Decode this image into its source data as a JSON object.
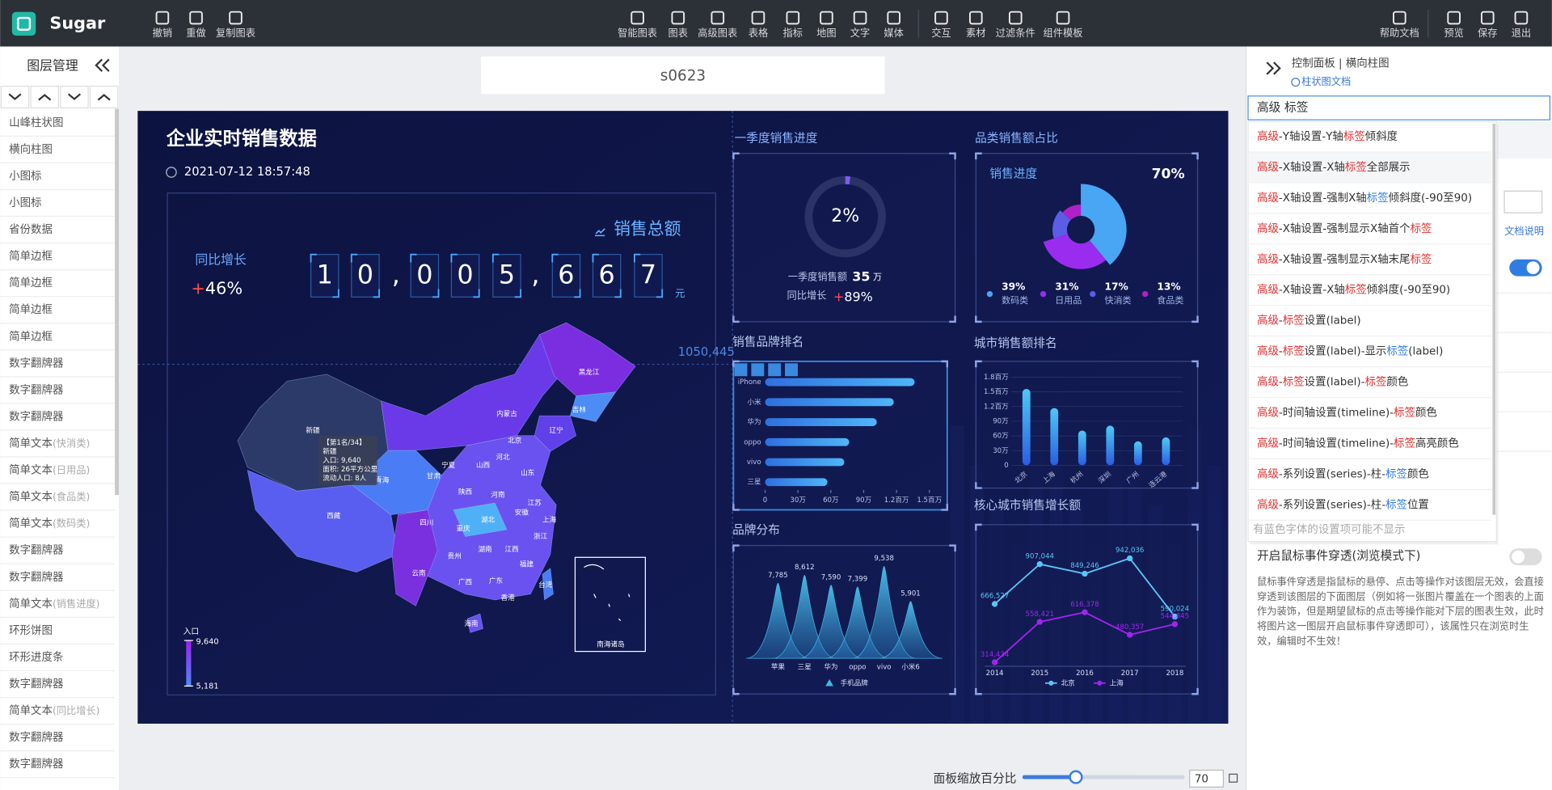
{
  "toolbar": {
    "brand": "Sugar",
    "left_actions": [
      "撤销",
      "重做",
      "复制图表"
    ],
    "center_actions": [
      "智能图表",
      "图表",
      "高级图表",
      "表格",
      "指标",
      "地图",
      "文字",
      "媒体",
      "交互",
      "素材",
      "过滤条件",
      "组件模板"
    ],
    "right_actions": [
      "帮助文档",
      "预览",
      "保存",
      "退出"
    ]
  },
  "layers": {
    "title": "图层管理",
    "items": [
      {
        "name": "山峰柱状图"
      },
      {
        "name": "横向柱图"
      },
      {
        "name": "小图标"
      },
      {
        "name": "小图标"
      },
      {
        "name": "省份数据"
      },
      {
        "name": "简单边框"
      },
      {
        "name": "简单边框"
      },
      {
        "name": "简单边框"
      },
      {
        "name": "简单边框"
      },
      {
        "name": "数字翻牌器"
      },
      {
        "name": "数字翻牌器"
      },
      {
        "name": "数字翻牌器"
      },
      {
        "name": "简单文本",
        "note": "(快消类)"
      },
      {
        "name": "简单文本",
        "note": "(日用品)"
      },
      {
        "name": "简单文本",
        "note": "(食品类)"
      },
      {
        "name": "简单文本",
        "note": "(数码类)"
      },
      {
        "name": "数字翻牌器"
      },
      {
        "name": "数字翻牌器"
      },
      {
        "name": "简单文本",
        "note": "(销售进度)"
      },
      {
        "name": "环形饼图"
      },
      {
        "name": "环形进度条"
      },
      {
        "name": "数字翻牌器"
      },
      {
        "name": "简单文本",
        "note": "(同比增长)"
      },
      {
        "name": "数字翻牌器"
      },
      {
        "name": "数字翻牌器"
      }
    ]
  },
  "canvas": {
    "title": "s0623",
    "zoom_label": "面板缩放百分比",
    "zoom_value": 70
  },
  "dashboard": {
    "title": "企业实时销售数据",
    "datetime": "2021-07-12 18:57:48",
    "total": {
      "label": "销售总额",
      "digits": [
        "1",
        "0",
        ",",
        "0",
        "0",
        "5",
        ",",
        "6",
        "6",
        "7"
      ],
      "unit": "元"
    },
    "yoy": {
      "label": "同比增长",
      "sign": "+",
      "value": "46%"
    },
    "guide_label": "1050,445",
    "map": {
      "tooltip": [
        "【第1名/34】",
        "新疆",
        "入口: 9,640",
        "面积: 26平方公里",
        "流动人口: 8人"
      ],
      "provinces": [
        "新疆",
        "西藏",
        "青海",
        "甘肃",
        "内蒙古",
        "黑龙江",
        "吉林",
        "辽宁",
        "宁夏",
        "北京",
        "河北",
        "山西",
        "陕西",
        "河南",
        "山东",
        "江苏",
        "安徽",
        "湖北",
        "上海",
        "浙江",
        "四川",
        "重庆",
        "贵州",
        "湖南",
        "江西",
        "福建",
        "云南",
        "广西",
        "广东",
        "香港",
        "台湾",
        "海南"
      ],
      "legend": {
        "title": "入口",
        "max": {
          "value": 9640,
          "label": "9,640"
        },
        "min": {
          "value": 5181,
          "label": "5,181"
        }
      },
      "inset_label": "南海诸岛"
    },
    "q1_progress": {
      "title": "一季度销售进度",
      "value": 2,
      "value_label": "2%",
      "sales_label": "一季度销售额",
      "sales": "35",
      "sales_unit": "万",
      "yoy_label": "同比增长",
      "yoy_sign": "+",
      "yoy": "89%"
    },
    "category_share": {
      "title": "品类销售额占比",
      "progress_label": "销售进度",
      "progress": "70%",
      "categories": [
        "数码类",
        "日用品",
        "快消类",
        "食品类"
      ],
      "values": [
        39,
        31,
        17,
        13
      ],
      "value_labels": [
        "39%",
        "31%",
        "17%",
        "13%"
      ],
      "colors": [
        "#49a6f4",
        "#9a2cf0",
        "#5a5ee6",
        "#b020c8"
      ]
    },
    "brand_ranking": {
      "title": "销售品牌排名",
      "categories": [
        "iPhone",
        "小米",
        "华为",
        "oppo",
        "vivo",
        "三星"
      ],
      "values": [
        1365000,
        1175000,
        1020000,
        768000,
        723000,
        569000
      ],
      "xlim": [
        0,
        1500000
      ],
      "xticks": [
        0,
        {
          "value": 300000,
          "label": "30万"
        },
        {
          "value": 600000,
          "label": "60万"
        },
        {
          "value": 900000,
          "label": "90万"
        },
        {
          "value": 1200000,
          "label": "1.2百万"
        },
        {
          "value": 1500000,
          "label": "1.5百万"
        }
      ],
      "color": "#3f8ff0"
    },
    "city_ranking": {
      "title": "城市销售额排名",
      "categories": [
        "北京",
        "上海",
        "杭州",
        "深圳",
        "广州",
        "连云港"
      ],
      "values": [
        1560000,
        1170000,
        710000,
        810000,
        490000,
        570000
      ],
      "ylim": [
        0,
        1800000
      ],
      "yticks": [
        0,
        {
          "value": 300000,
          "label": "30万"
        },
        {
          "value": 600000,
          "label": "60万"
        },
        {
          "value": 900000,
          "label": "90万"
        },
        {
          "value": 1200000,
          "label": "1.2百万"
        },
        {
          "value": 1500000,
          "label": "1.5百万"
        },
        {
          "value": 1800000,
          "label": "1.8百万"
        }
      ],
      "color": "#3fb0ee"
    },
    "brand_distribution": {
      "title": "品牌分布",
      "categories": [
        "苹果",
        "三星",
        "华为",
        "oppo",
        "vivo",
        "小米6"
      ],
      "values": [
        7785,
        8612,
        7590,
        7399,
        9538,
        5901
      ],
      "value_labels": [
        "7,785",
        "8,612",
        "7,590",
        "7,399",
        "9,538",
        "5,901"
      ],
      "legend": "手机品牌",
      "color": "#3fb7e6"
    },
    "city_growth": {
      "title": "核心城市销售增长额",
      "x": [
        2014,
        2015,
        2016,
        2017,
        2018
      ],
      "series": [
        {
          "name": "北京",
          "color": "#58c6f5",
          "values": [
            666527,
            907044,
            849246,
            942036,
            590024
          ],
          "value_labels": [
            "666,527",
            "907,044",
            "849,246",
            "942,036",
            "590,024"
          ]
        },
        {
          "name": "上海",
          "color": "#a224f0",
          "values": [
            314434,
            558421,
            616378,
            480357,
            544845
          ],
          "value_labels": [
            "314,434",
            "558,421",
            "616,378",
            "480,357",
            "544,845"
          ]
        }
      ]
    }
  },
  "control_panel": {
    "breadcrumb": "控制面板 | 横向柱图",
    "doc_link": "柱状图文档",
    "search": "高级 标签",
    "results": [
      [
        {
          "text": "高级",
          "hl": "red"
        },
        {
          "text": "-Y轴设置-Y轴"
        },
        {
          "text": "标签",
          "hl": "red"
        },
        {
          "text": "倾斜度"
        }
      ],
      [
        {
          "text": "高级",
          "hl": "red"
        },
        {
          "text": "-X轴设置-X轴"
        },
        {
          "text": "标签",
          "hl": "red"
        },
        {
          "text": "全部展示"
        }
      ],
      [
        {
          "text": "高级",
          "hl": "red"
        },
        {
          "text": "-X轴设置-强制X轴"
        },
        {
          "text": "标签",
          "hl": "blue"
        },
        {
          "text": "倾斜度(-90至90)"
        }
      ],
      [
        {
          "text": "高级",
          "hl": "red"
        },
        {
          "text": "-X轴设置-强制显示X轴首个"
        },
        {
          "text": "标签",
          "hl": "red"
        }
      ],
      [
        {
          "text": "高级",
          "hl": "red"
        },
        {
          "text": "-X轴设置-强制显示X轴末尾"
        },
        {
          "text": "标签",
          "hl": "red"
        }
      ],
      [
        {
          "text": "高级",
          "hl": "red"
        },
        {
          "text": "-X轴设置-X轴"
        },
        {
          "text": "标签",
          "hl": "red"
        },
        {
          "text": "倾斜度(-90至90)"
        }
      ],
      [
        {
          "text": "高级",
          "hl": "red"
        },
        {
          "text": "-"
        },
        {
          "text": "标签",
          "hl": "red"
        },
        {
          "text": "设置(label)"
        }
      ],
      [
        {
          "text": "高级",
          "hl": "red"
        },
        {
          "text": "-"
        },
        {
          "text": "标签",
          "hl": "red"
        },
        {
          "text": "设置(label)-显示"
        },
        {
          "text": "标签",
          "hl": "blue"
        },
        {
          "text": "(label)"
        }
      ],
      [
        {
          "text": "高级",
          "hl": "red"
        },
        {
          "text": "-"
        },
        {
          "text": "标签",
          "hl": "red"
        },
        {
          "text": "设置(label)-"
        },
        {
          "text": "标签",
          "hl": "red"
        },
        {
          "text": "颜色"
        }
      ],
      [
        {
          "text": "高级",
          "hl": "red"
        },
        {
          "text": "-时间轴设置(timeline)-"
        },
        {
          "text": "标签",
          "hl": "red"
        },
        {
          "text": "颜色"
        }
      ],
      [
        {
          "text": "高级",
          "hl": "red"
        },
        {
          "text": "-时间轴设置(timeline)-"
        },
        {
          "text": "标签",
          "hl": "red"
        },
        {
          "text": "高亮颜色"
        }
      ],
      [
        {
          "text": "高级",
          "hl": "red"
        },
        {
          "text": "-系列设置(series)-柱-"
        },
        {
          "text": "标签",
          "hl": "blue"
        },
        {
          "text": "颜色"
        }
      ],
      [
        {
          "text": "高级",
          "hl": "red"
        },
        {
          "text": "-系列设置(series)-柱-"
        },
        {
          "text": "标签",
          "hl": "blue"
        },
        {
          "text": "位置"
        }
      ]
    ],
    "hint": "有蓝色字体的设置项可能不显示",
    "doc_note": "文档说明",
    "passthrough": {
      "label": "开启鼠标事件穿透(浏览模式下)",
      "description": [
        "鼠标事件穿透是指鼠标的悬停、点击等操作对该图层无效，会直接",
        "穿透到该图层的下面图层（例如将一张图片覆盖在一个图表的上面",
        "作为装饰，但是期望鼠标的点击等操作能对下层的图表生效，此时",
        "将图片这一图层开启鼠标事件穿透即可），该属性只在浏览时生",
        "效，编辑时不生效！"
      ]
    }
  }
}
